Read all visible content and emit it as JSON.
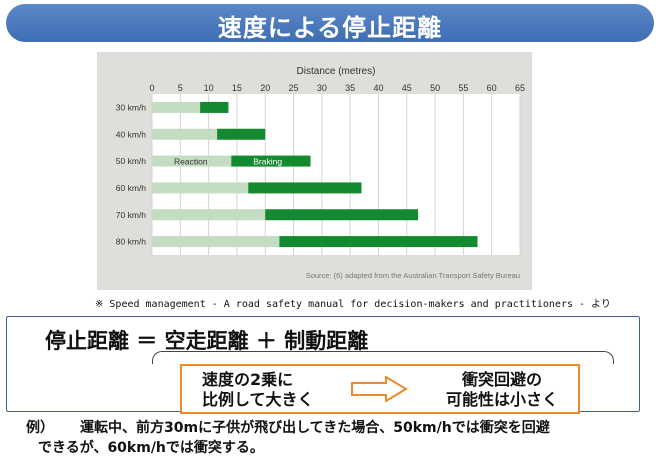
{
  "title": "速度による停止距離",
  "chart_data": {
    "type": "bar",
    "stacked": true,
    "orientation": "horizontal",
    "title": "Distance (metres)",
    "xlabel": "Distance (metres)",
    "xlim": [
      0,
      65
    ],
    "x_ticks": [
      0,
      5,
      10,
      15,
      20,
      25,
      30,
      35,
      40,
      45,
      50,
      55,
      60,
      65
    ],
    "categories": [
      "30 km/h",
      "40 km/h",
      "50 km/h",
      "60 km/h",
      "70 km/h",
      "80 km/h"
    ],
    "series": [
      {
        "name": "Reaction",
        "color": "#c3dcc2",
        "values": [
          8.5,
          11.5,
          14,
          17,
          20,
          22.5
        ]
      },
      {
        "name": "Braking",
        "color": "#138a2f",
        "values": [
          5,
          8.5,
          14,
          20,
          27,
          35
        ]
      }
    ],
    "label_row": "50 km/h",
    "source": "Source: (6) adapted from the Australian Transport Safety Bureau",
    "grid": true
  },
  "note": "※ Speed management - A road safety manual for decision-makers and practitioners - より",
  "formula": "停止距離 ＝ 空走距離 ＋ 制動距離",
  "box": {
    "left_line1": "速度の2乗に",
    "left_line2": "比例して大きく",
    "right_line1": "衝突回避の",
    "right_line2": "可能性は小さく"
  },
  "example": {
    "label": "例）",
    "line1": "運転中、前方30mに子供が飛び出してきた場合、50km/hでは衝突を回避",
    "line2": "できるが、60km/hでは衝突する。"
  }
}
